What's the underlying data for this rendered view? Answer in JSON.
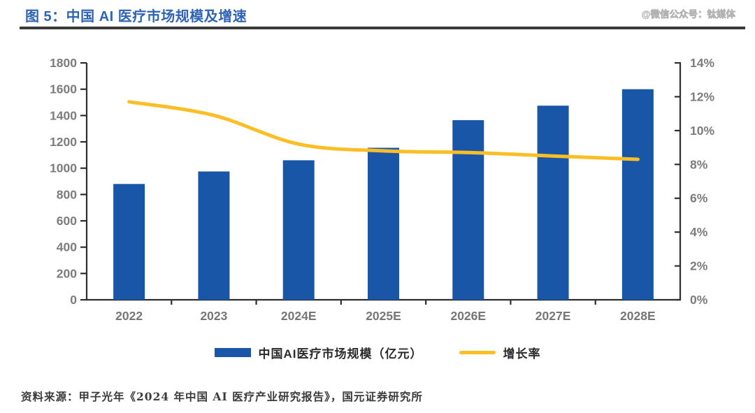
{
  "header": {
    "title": "图 5：中国 AI 医疗市场规模及增速",
    "watermark": "@微信公众号：钛媒体"
  },
  "chart_data": {
    "type": "bar",
    "subtype": "bar-line-combo",
    "title": "中国 AI 医疗市场规模及增速",
    "categories": [
      "2022",
      "2023",
      "2024E",
      "2025E",
      "2026E",
      "2027E",
      "2028E"
    ],
    "series": [
      {
        "name": "中国AI医疗市场规模（亿元）",
        "type": "bar",
        "axis": "left",
        "color": "#1a56a8",
        "values": [
          880,
          975,
          1060,
          1155,
          1365,
          1475,
          1600
        ]
      },
      {
        "name": "增长率",
        "type": "line",
        "axis": "right",
        "color": "#fbbf25",
        "unit": "%",
        "values": [
          11.7,
          10.9,
          9.2,
          8.8,
          8.7,
          8.5,
          8.3
        ]
      }
    ],
    "left_axis": {
      "min": 0,
      "max": 1800,
      "step": 200,
      "tick_labels": [
        "0",
        "200",
        "400",
        "600",
        "800",
        "1000",
        "1200",
        "1400",
        "1600",
        "1800"
      ]
    },
    "right_axis": {
      "min": 0,
      "max": 14,
      "step": 2,
      "suffix": "%",
      "tick_labels": [
        "0%",
        "2%",
        "4%",
        "6%",
        "8%",
        "10%",
        "12%",
        "14%"
      ]
    },
    "grid": false,
    "legend_position": "bottom"
  },
  "footer": {
    "source": "资料来源：甲子光年《2024 年中国 AI 医疗产业研究报告》，国元证券研究所"
  },
  "colors": {
    "bar": "#1a56a8",
    "line": "#fbbf25",
    "title": "#2f63b4",
    "axis": "#2e2e2e",
    "tick_label": "#7c7c7c",
    "divider": "#3a3a3a"
  }
}
